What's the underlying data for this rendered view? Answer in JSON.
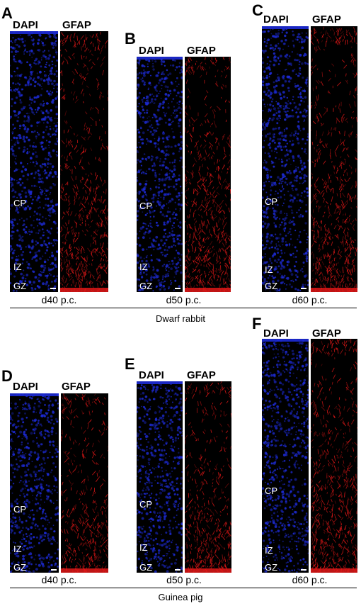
{
  "colors": {
    "dapi": "#1d2bd6",
    "gfap": "#e01818",
    "background": "#000000"
  },
  "column_labels": {
    "dapi": "DAPI",
    "gfap": "GFAP"
  },
  "layer_labels": {
    "cp": "CP",
    "iz": "IZ",
    "gz": "GZ"
  },
  "groups": [
    {
      "species": "Dwarf rabbit"
    },
    {
      "species": "Guinea pig"
    }
  ],
  "panels": [
    {
      "letter": "A",
      "stage": "d40 p.c."
    },
    {
      "letter": "B",
      "stage": "d50 p.c."
    },
    {
      "letter": "C",
      "stage": "d60 p.c."
    },
    {
      "letter": "D",
      "stage": "d40 p.c."
    },
    {
      "letter": "E",
      "stage": "d50 p.c."
    },
    {
      "letter": "F",
      "stage": "d60 p.c."
    }
  ]
}
